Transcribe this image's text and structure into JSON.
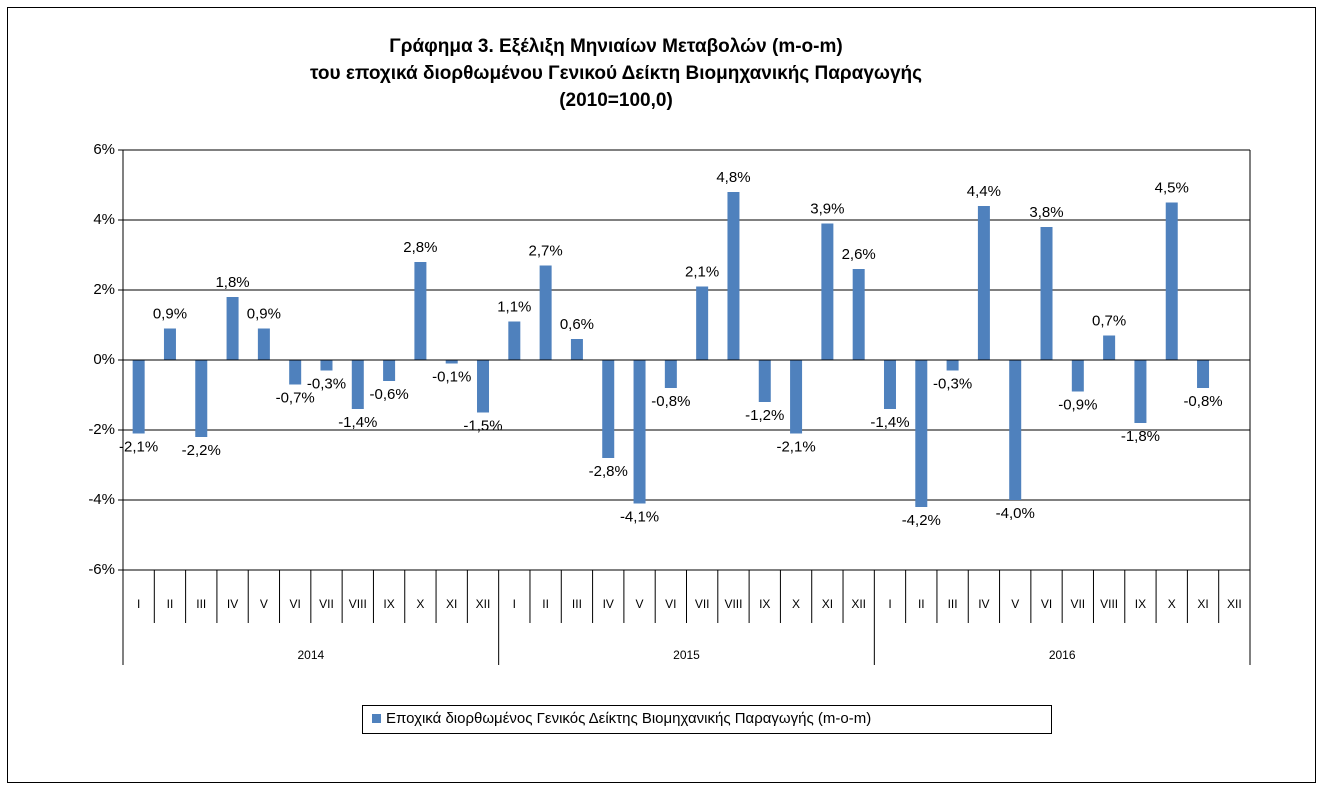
{
  "chart_data": {
    "type": "bar",
    "title": [
      "Γράφημα 3. Εξέλιξη Μηνιαίων Μεταβολών (m-o-m)",
      "του εποχικά διορθωμένου Γενικού Δείκτη Βιομηχανικής Παραγωγής",
      "(2010=100,0)"
    ],
    "categories": [
      "I",
      "II",
      "III",
      "IV",
      "V",
      "VI",
      "VII",
      "VIII",
      "IX",
      "X",
      "XI",
      "XII",
      "I",
      "II",
      "III",
      "IV",
      "V",
      "VI",
      "VII",
      "VIII",
      "IX",
      "X",
      "XI",
      "XII",
      "I",
      "II",
      "III",
      "IV",
      "V",
      "VI",
      "VII",
      "VIII",
      "IX",
      "X",
      "XI",
      "XII"
    ],
    "years": [
      "2014",
      "2015",
      "2016"
    ],
    "series": [
      {
        "name": "Εποχικά διορθωμένος Γενικός Δείκτης Βιομηχανικής Παραγωγής (m-o-m)",
        "color": "#4f81bd",
        "values": [
          -2.1,
          0.9,
          -2.2,
          1.8,
          0.9,
          -0.7,
          -0.3,
          -1.4,
          -0.6,
          2.8,
          -0.1,
          -1.5,
          1.1,
          2.7,
          0.6,
          -2.8,
          -4.1,
          -0.8,
          2.1,
          4.8,
          -1.2,
          -2.1,
          3.9,
          2.6,
          -1.4,
          -4.2,
          -0.3,
          4.4,
          -4.0,
          3.8,
          -0.9,
          0.7,
          -1.8,
          4.5,
          -0.8,
          null
        ],
        "value_labels": [
          "-2,1%",
          "0,9%",
          "-2,2%",
          "1,8%",
          "0,9%",
          "-0,7%",
          "-0,3%",
          "-1,4%",
          "-0,6%",
          "2,8%",
          "-0,1%",
          "-1,5%",
          "1,1%",
          "2,7%",
          "0,6%",
          "-2,8%",
          "-4,1%",
          "-0,8%",
          "2,1%",
          "4,8%",
          "-1,2%",
          "-2,1%",
          "3,9%",
          "2,6%",
          "-1,4%",
          "-4,2%",
          "-0,3%",
          "4,4%",
          "-4,0%",
          "3,8%",
          "-0,9%",
          "0,7%",
          "-1,8%",
          "4,5%",
          "-0,8%",
          null
        ]
      }
    ],
    "ylim": [
      -6,
      6
    ],
    "yticks": [
      {
        "value": -6,
        "label": "-6%"
      },
      {
        "value": -4,
        "label": "-4%"
      },
      {
        "value": -2,
        "label": "-2%"
      },
      {
        "value": 0,
        "label": "0%"
      },
      {
        "value": 2,
        "label": "2%"
      },
      {
        "value": 4,
        "label": "4%"
      },
      {
        "value": 6,
        "label": "6%"
      }
    ],
    "grid": true
  }
}
